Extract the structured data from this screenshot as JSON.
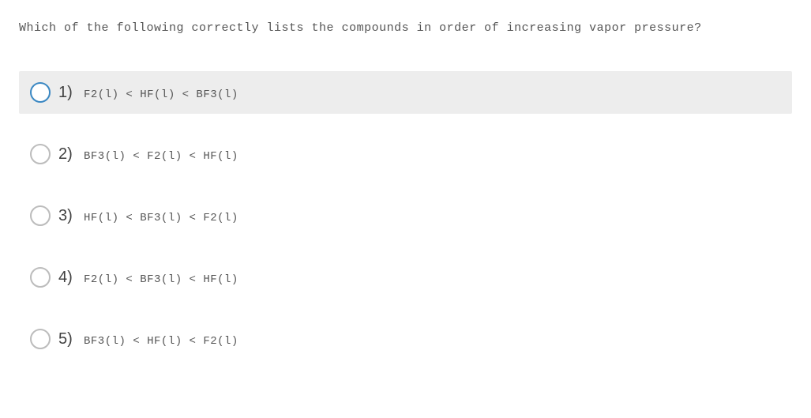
{
  "question": {
    "text": "Which of the following correctly lists the compounds in order of increasing vapor pressure?",
    "text_fontsize": 15,
    "text_color": "#555555",
    "font_family": "Courier New"
  },
  "options": [
    {
      "number": "1)",
      "text": "F2(l) < HF(l) < BF3(l)",
      "highlighted": true
    },
    {
      "number": "2)",
      "text": "BF3(l) < F2(l) < HF(l)",
      "highlighted": false
    },
    {
      "number": "3)",
      "text": "HF(l) < BF3(l) < F2(l)",
      "highlighted": false
    },
    {
      "number": "4)",
      "text": "F2(l) < BF3(l) < HF(l)",
      "highlighted": false
    },
    {
      "number": "5)",
      "text": "BF3(l) < HF(l) < F2(l)",
      "highlighted": false
    }
  ],
  "styling": {
    "background_color": "#ffffff",
    "highlight_bg_color": "#ededed",
    "radio_border_default": "#bcbcbc",
    "radio_border_highlight": "#3b88c3",
    "option_number_fontsize": 20,
    "option_number_color": "#404040",
    "option_text_fontsize": 14,
    "option_text_color": "#555555",
    "radio_diameter": 26
  }
}
